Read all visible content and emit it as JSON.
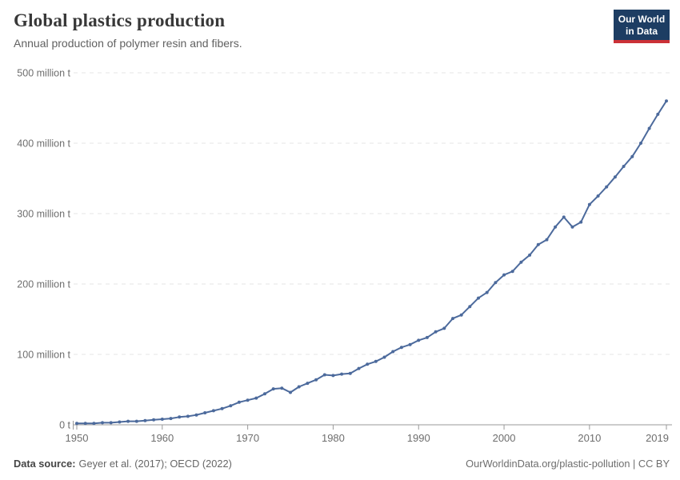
{
  "header": {
    "title": "Global plastics production",
    "subtitle": "Annual production of polymer resin and fibers."
  },
  "logo": {
    "line1": "Our World",
    "line2": "in Data",
    "bg_color": "#1d3d63",
    "accent_color": "#cb3137"
  },
  "footer": {
    "source_label": "Data source:",
    "source_value": "Geyer et al. (2017); OECD (2022)",
    "link": "OurWorldinData.org/plastic-pollution | CC BY"
  },
  "chart_data": {
    "type": "line",
    "title": "Global plastics production",
    "subtitle": "Annual production of polymer resin and fibers.",
    "unit": "million t",
    "x": [
      1950,
      1951,
      1952,
      1953,
      1954,
      1955,
      1956,
      1957,
      1958,
      1959,
      1960,
      1961,
      1962,
      1963,
      1964,
      1965,
      1966,
      1967,
      1968,
      1969,
      1970,
      1971,
      1972,
      1973,
      1974,
      1975,
      1976,
      1977,
      1978,
      1979,
      1980,
      1981,
      1982,
      1983,
      1984,
      1985,
      1986,
      1987,
      1988,
      1989,
      1990,
      1991,
      1992,
      1993,
      1994,
      1995,
      1996,
      1997,
      1998,
      1999,
      2000,
      2001,
      2002,
      2003,
      2004,
      2005,
      2006,
      2007,
      2008,
      2009,
      2010,
      2011,
      2012,
      2013,
      2014,
      2015,
      2016,
      2017,
      2018,
      2019
    ],
    "values": [
      2,
      2,
      2,
      3,
      3,
      4,
      5,
      5,
      6,
      7,
      8,
      9,
      11,
      12,
      14,
      17,
      20,
      23,
      27,
      32,
      35,
      38,
      44,
      51,
      52,
      46,
      54,
      59,
      64,
      71,
      70,
      72,
      73,
      80,
      86,
      90,
      96,
      104,
      110,
      114,
      120,
      124,
      132,
      137,
      151,
      156,
      168,
      180,
      188,
      202,
      213,
      218,
      231,
      241,
      256,
      263,
      281,
      295,
      281,
      288,
      313,
      325,
      338,
      352,
      367,
      381,
      400,
      421,
      441,
      460
    ],
    "xlabel": "",
    "ylabel": "",
    "xlim": [
      1950,
      2019
    ],
    "ylim": [
      0,
      500
    ],
    "xticks": [
      1950,
      1960,
      1970,
      1980,
      1990,
      2000,
      2010,
      2019
    ],
    "yticks": [
      {
        "value": 0,
        "label": "0 t"
      },
      {
        "value": 100,
        "label": "100 million t"
      },
      {
        "value": 200,
        "label": "200 million t"
      },
      {
        "value": 300,
        "label": "300 million t"
      },
      {
        "value": 400,
        "label": "400 million t"
      },
      {
        "value": 500,
        "label": "500 million t"
      }
    ],
    "grid": "horizontal-dashed",
    "legend": "none",
    "markers": "point-per-year",
    "line_color": "#4c6a9c",
    "grid_color": "#e5e5e5",
    "axis_color": "#999999",
    "tick_label_color": "#6e6e6e"
  }
}
